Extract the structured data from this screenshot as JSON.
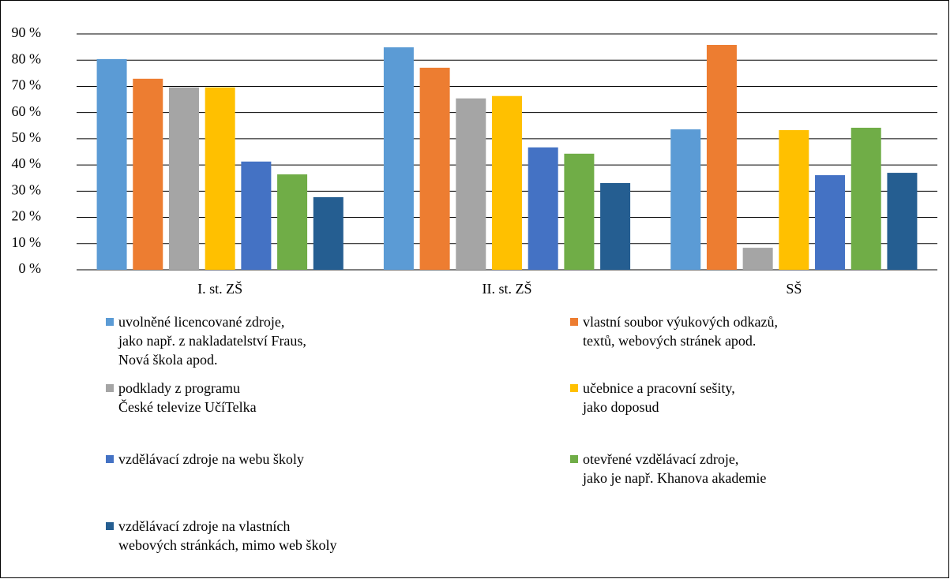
{
  "chart_data": {
    "type": "bar",
    "categories": [
      "I. st. ZŠ",
      "II. st. ZŠ",
      "SŠ"
    ],
    "ylim": [
      0,
      90
    ],
    "yticks": [
      {
        "value": 0,
        "label": "0 %"
      },
      {
        "value": 10,
        "label": "10 %"
      },
      {
        "value": 20,
        "label": "20 %"
      },
      {
        "value": 30,
        "label": "30 %"
      },
      {
        "value": 40,
        "label": "40 %"
      },
      {
        "value": 50,
        "label": "50 %"
      },
      {
        "value": 60,
        "label": "60 %"
      },
      {
        "value": 70,
        "label": "70 %"
      },
      {
        "value": 80,
        "label": "80 %"
      },
      {
        "value": 90,
        "label": "90 %"
      }
    ],
    "grid": true,
    "series": [
      {
        "name": "uvolněné licencované zdroje,\njako např. z nakladatelství Fraus,\nNová škola apod.",
        "color": "#5b9bd5",
        "values": [
          80.4,
          84.9,
          53.6
        ]
      },
      {
        "name": "vlastní soubor výukových odkazů,\ntextů, webových stránek apod.",
        "color": "#ed7d31",
        "values": [
          72.9,
          77.1,
          85.8
        ]
      },
      {
        "name": "podklady z programu\nČeské televize UčíTelka",
        "color": "#a5a5a5",
        "values": [
          69.6,
          65.4,
          8.4
        ]
      },
      {
        "name": "učebnice a pracovní sešity,\njako doposud",
        "color": "#ffc000",
        "values": [
          69.6,
          66.3,
          53.3
        ]
      },
      {
        "name": "vzdělávací zdroje na webu školy",
        "color": "#4472c4",
        "values": [
          41.3,
          46.7,
          36.1
        ]
      },
      {
        "name": "otevřené vzdělávací zdroje,\njako je např. Khanova akademie",
        "color": "#70ad47",
        "values": [
          36.4,
          44.3,
          54.2
        ]
      },
      {
        "name": "vzdělávací zdroje na vlastních\nwebových stránkách, mimo web školy",
        "color": "#255e91",
        "values": [
          27.7,
          33.1,
          37.0
        ]
      }
    ]
  }
}
